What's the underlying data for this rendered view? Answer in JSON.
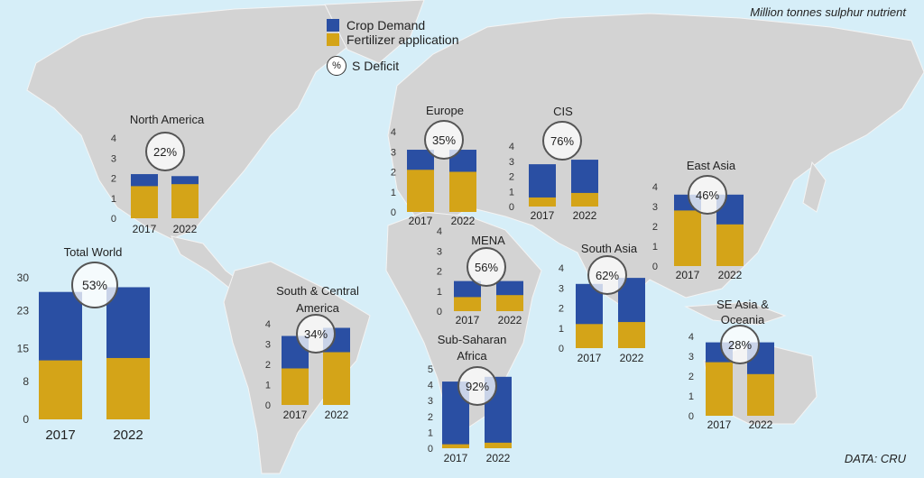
{
  "units_label": "Million tonnes sulphur nutrient",
  "source_label": "DATA: CRU",
  "legend": {
    "crop_demand": "Crop Demand",
    "fertilizer": "Fertilizer application",
    "deficit_symbol": "%",
    "deficit_label": "S Deficit"
  },
  "colors": {
    "crop_demand": "#2a4fa3",
    "fertilizer": "#d4a418",
    "land": "#d4d4d4",
    "ocean": "#d6eef8"
  },
  "chart_data": [
    {
      "type": "bar",
      "title": "North America",
      "categories": [
        "2017",
        "2022"
      ],
      "series": [
        {
          "name": "Fertilizer application",
          "values": [
            1.6,
            1.7
          ]
        },
        {
          "name": "Crop Demand",
          "values": [
            2.2,
            2.1
          ]
        }
      ],
      "deficit": "22%",
      "yticks": [
        0,
        1,
        2,
        3,
        4
      ],
      "ylim": [
        0,
        4
      ]
    },
    {
      "type": "bar",
      "title": "Europe",
      "categories": [
        "2017",
        "2022"
      ],
      "series": [
        {
          "name": "Fertilizer application",
          "values": [
            2.1,
            2.0
          ]
        },
        {
          "name": "Crop Demand",
          "values": [
            3.1,
            3.1
          ]
        }
      ],
      "deficit": "35%",
      "yticks": [
        0,
        1,
        2,
        3,
        4
      ],
      "ylim": [
        0,
        4
      ]
    },
    {
      "type": "bar",
      "title": "CIS",
      "categories": [
        "2017",
        "2022"
      ],
      "series": [
        {
          "name": "Fertilizer application",
          "values": [
            0.6,
            0.9
          ]
        },
        {
          "name": "Crop Demand",
          "values": [
            2.8,
            3.1
          ]
        }
      ],
      "deficit": "76%",
      "yticks": [
        0,
        1,
        2,
        3,
        4
      ],
      "ylim": [
        0,
        4
      ]
    },
    {
      "type": "bar",
      "title": "East Asia",
      "categories": [
        "2017",
        "2022"
      ],
      "series": [
        {
          "name": "Fertilizer application",
          "values": [
            2.8,
            2.1
          ]
        },
        {
          "name": "Crop Demand",
          "values": [
            3.6,
            3.6
          ]
        }
      ],
      "deficit": "46%",
      "yticks": [
        0,
        1,
        2,
        3,
        4
      ],
      "ylim": [
        0,
        4
      ]
    },
    {
      "type": "bar",
      "title": "MENA",
      "categories": [
        "2017",
        "2022"
      ],
      "series": [
        {
          "name": "Fertilizer application",
          "values": [
            0.7,
            0.8
          ]
        },
        {
          "name": "Crop Demand",
          "values": [
            1.5,
            1.5
          ]
        }
      ],
      "deficit": "56%",
      "yticks": [
        0,
        1,
        2,
        3,
        4
      ],
      "ylim": [
        0,
        4
      ]
    },
    {
      "type": "bar",
      "title": "South Asia",
      "categories": [
        "2017",
        "2022"
      ],
      "series": [
        {
          "name": "Fertilizer application",
          "values": [
            1.2,
            1.3
          ]
        },
        {
          "name": "Crop Demand",
          "values": [
            3.2,
            3.5
          ]
        }
      ],
      "deficit": "62%",
      "yticks": [
        0,
        1,
        2,
        3,
        4
      ],
      "ylim": [
        0,
        4
      ]
    },
    {
      "type": "bar",
      "title": "Total World",
      "categories": [
        "2017",
        "2022"
      ],
      "series": [
        {
          "name": "Fertilizer application",
          "values": [
            12.5,
            13.0
          ]
        },
        {
          "name": "Crop Demand",
          "values": [
            27,
            28
          ]
        }
      ],
      "deficit": "53%",
      "yticks": [
        0,
        8,
        15,
        23,
        30
      ],
      "ylim": [
        0,
        30
      ]
    },
    {
      "type": "bar",
      "title": "South & Central America",
      "categories": [
        "2017",
        "2022"
      ],
      "series": [
        {
          "name": "Fertilizer application",
          "values": [
            1.8,
            2.6
          ]
        },
        {
          "name": "Crop Demand",
          "values": [
            3.4,
            3.8
          ]
        }
      ],
      "deficit": "34%",
      "yticks": [
        0,
        1,
        2,
        3,
        4
      ],
      "ylim": [
        0,
        4
      ]
    },
    {
      "type": "bar",
      "title": "Sub-Saharan Africa",
      "categories": [
        "2017",
        "2022"
      ],
      "series": [
        {
          "name": "Fertilizer application",
          "values": [
            0.25,
            0.35
          ]
        },
        {
          "name": "Crop Demand",
          "values": [
            4.2,
            4.5
          ]
        }
      ],
      "deficit": "92%",
      "yticks": [
        0,
        1,
        2,
        3,
        4,
        5
      ],
      "ylim": [
        0,
        5
      ]
    },
    {
      "type": "bar",
      "title": "SE Asia & Oceania",
      "categories": [
        "2017",
        "2022"
      ],
      "series": [
        {
          "name": "Fertilizer application",
          "values": [
            2.7,
            2.1
          ]
        },
        {
          "name": "Crop Demand",
          "values": [
            3.7,
            3.7
          ]
        }
      ],
      "deficit": "28%",
      "yticks": [
        0,
        1,
        2,
        3,
        4
      ],
      "ylim": [
        0,
        4
      ]
    }
  ]
}
